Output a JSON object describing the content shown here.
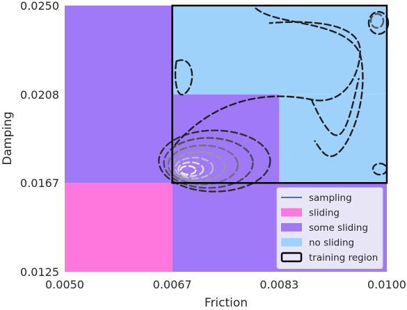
{
  "chart_data": {
    "type": "heatmap",
    "title": "",
    "xlabel": "Friction",
    "ylabel": "Damping",
    "xlim": [
      0.005,
      0.01
    ],
    "ylim": [
      0.0125,
      0.025
    ],
    "x_ticks": [
      0.005,
      0.00667,
      0.00833,
      0.01
    ],
    "x_tick_labels": [
      "0.0050",
      "0.0067",
      "0.0083",
      "0.0100"
    ],
    "y_ticks": [
      0.0125,
      0.01667,
      0.02083,
      0.025
    ],
    "y_tick_labels": [
      "0.0125",
      "0.0167",
      "0.0208",
      "0.0250"
    ],
    "grid": false,
    "legend_position": "lower-right",
    "regions": [
      {
        "category": "sliding",
        "x": [
          0.005,
          0.00667
        ],
        "y": [
          0.0125,
          0.01667
        ]
      },
      {
        "category": "some sliding",
        "x": [
          0.00667,
          0.01
        ],
        "y": [
          0.0125,
          0.01667
        ]
      },
      {
        "category": "some sliding",
        "x": [
          0.005,
          0.00667
        ],
        "y": [
          0.01667,
          0.025
        ]
      },
      {
        "category": "some sliding",
        "x": [
          0.00667,
          0.00833
        ],
        "y": [
          0.01667,
          0.02083
        ]
      },
      {
        "category": "no sliding",
        "x": [
          0.00833,
          0.01
        ],
        "y": [
          0.01667,
          0.02083
        ]
      },
      {
        "category": "no sliding",
        "x": [
          0.00667,
          0.01
        ],
        "y": [
          0.02083,
          0.025
        ]
      }
    ],
    "training_region": {
      "x": [
        0.00667,
        0.01
      ],
      "y": [
        0.01667,
        0.025
      ]
    },
    "sampling_peak": {
      "x": 0.00685,
      "y": 0.0172
    },
    "legend": [
      {
        "label": "sampling",
        "kind": "line",
        "color": "#4c72b0"
      },
      {
        "label": "sliding",
        "kind": "patch",
        "color": "#ff77dd"
      },
      {
        "label": "some sliding",
        "kind": "patch",
        "color": "#9f79f8"
      },
      {
        "label": "no sliding",
        "kind": "patch",
        "color": "#9fd2fb"
      },
      {
        "label": "training region",
        "kind": "box",
        "color": "#000000"
      }
    ],
    "colors": {
      "sliding": "#ff77dd",
      "some sliding": "#9f79f8",
      "no sliding": "#9fd2fb"
    }
  }
}
